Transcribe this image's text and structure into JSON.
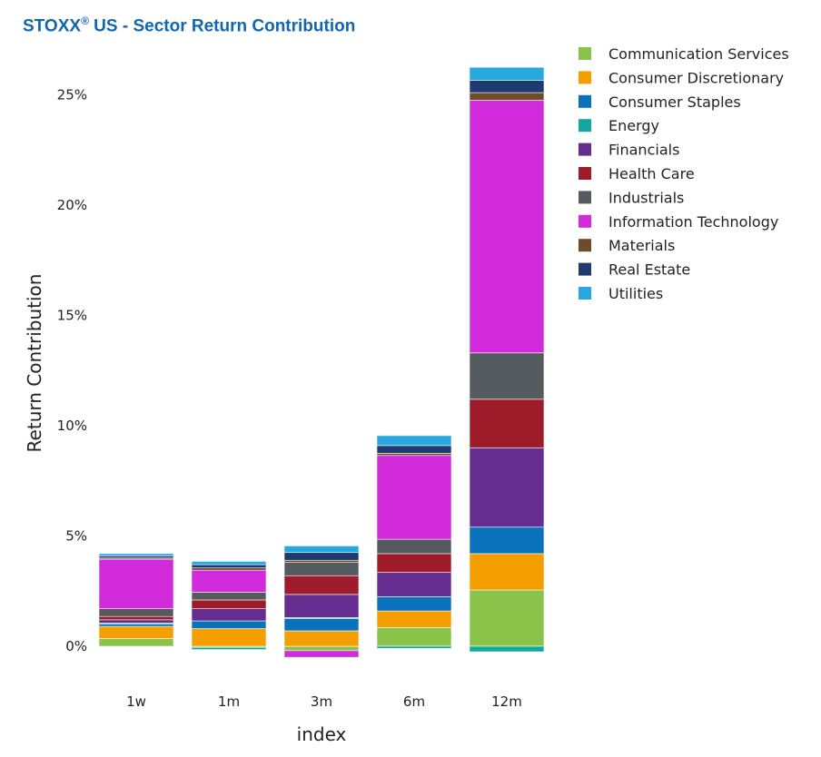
{
  "title": {
    "text": "STOXX",
    "sup": "®",
    "rest": " US - Sector Return Contribution"
  },
  "chart_data": {
    "type": "bar",
    "stacked": true,
    "title": "STOXX® US - Sector Return Contribution",
    "xlabel": "index",
    "ylabel": "Return Contribution",
    "ylim": [
      -0.7,
      26.5
    ],
    "yticks": [
      0,
      5,
      10,
      15,
      20,
      25
    ],
    "ytick_labels": [
      "0%",
      "5%",
      "10%",
      "15%",
      "20%",
      "25%"
    ],
    "categories": [
      "1w",
      "1m",
      "3m",
      "6m",
      "12m"
    ],
    "legend_position": "top-right",
    "series": [
      {
        "name": "Communication Services",
        "color": "#8bc34a",
        "values": [
          0.35,
          -0.05,
          -0.2,
          0.85,
          2.55
        ]
      },
      {
        "name": "Consumer Discretionary",
        "color": "#f59e00",
        "values": [
          0.55,
          0.8,
          0.7,
          0.75,
          1.65
        ]
      },
      {
        "name": "Consumer Staples",
        "color": "#0a72bb",
        "values": [
          0.1,
          0.35,
          0.55,
          0.65,
          1.2
        ]
      },
      {
        "name": "Energy",
        "color": "#13a89e",
        "values": [
          0.05,
          -0.1,
          0.05,
          -0.1,
          -0.25
        ]
      },
      {
        "name": "Financials",
        "color": "#662d91",
        "values": [
          0.15,
          0.55,
          1.05,
          1.1,
          3.6
        ]
      },
      {
        "name": "Health Care",
        "color": "#9e1b2a",
        "values": [
          0.15,
          0.4,
          0.85,
          0.85,
          2.2
        ]
      },
      {
        "name": "Industrials",
        "color": "#545a5e",
        "values": [
          0.35,
          0.35,
          0.6,
          0.65,
          2.1
        ]
      },
      {
        "name": "Information Technology",
        "color": "#d22bdb",
        "values": [
          2.25,
          1.0,
          -0.3,
          3.8,
          11.45
        ]
      },
      {
        "name": "Materials",
        "color": "#6e4b2a",
        "values": [
          0.05,
          0.1,
          0.1,
          0.1,
          0.35
        ]
      },
      {
        "name": "Real Estate",
        "color": "#1f3a70",
        "values": [
          0.1,
          0.15,
          0.35,
          0.35,
          0.55
        ]
      },
      {
        "name": "Utilities",
        "color": "#29a8df",
        "values": [
          0.1,
          0.15,
          0.3,
          0.45,
          0.6
        ]
      }
    ]
  }
}
